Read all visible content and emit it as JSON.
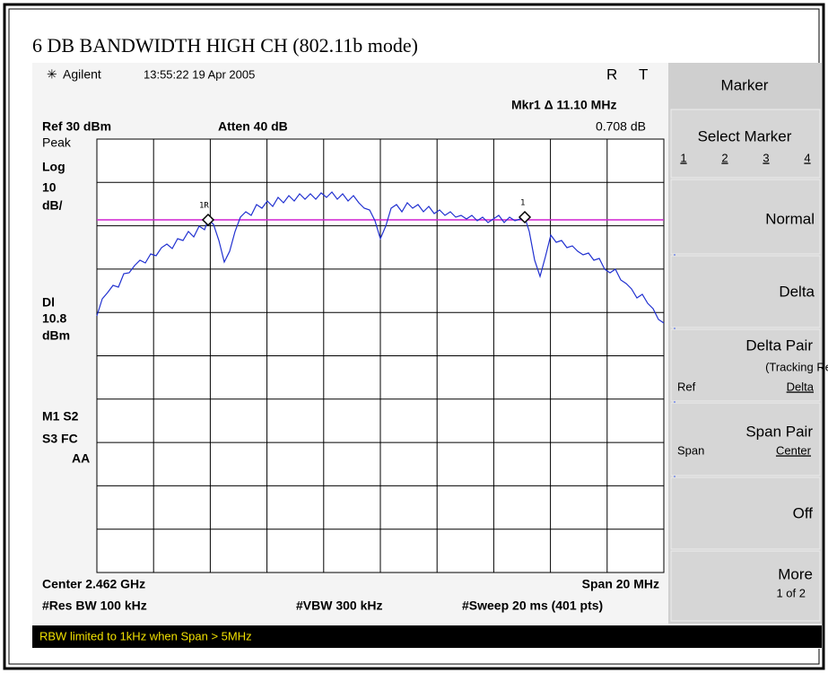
{
  "title": "6 DB BANDWIDTH HIGH CH (802.11b mode)",
  "header": {
    "brand": "Agilent",
    "timestamp": "13:55:22  19 Apr 2005",
    "status": [
      "R",
      "T"
    ]
  },
  "marker_readout": {
    "label": "Mkr1 Δ  11.10 MHz",
    "value": "0.708 dB"
  },
  "settings": {
    "ref": "Ref 30 dBm",
    "atten": "Atten 40 dB"
  },
  "left_labels": [
    "Peak",
    "Log",
    "10",
    "dB/",
    "Dl",
    "10.8",
    "dBm",
    "M1  S2",
    "S3  FC",
    "AA"
  ],
  "markers": [
    "1R",
    "1"
  ],
  "footer": {
    "center": "Center 2.462 GHz",
    "span": "Span 20 MHz",
    "rbw": "#Res BW 100 kHz",
    "vbw": "#VBW 300 kHz",
    "sweep": "#Sweep 20 ms (401 pts)"
  },
  "softkeys": {
    "menu": "Marker",
    "select": {
      "label": "Select Marker",
      "options": [
        "1",
        "2",
        "3",
        "4"
      ]
    },
    "normal": "Normal",
    "delta": "Delta",
    "delta_pair": {
      "label": "Delta Pair",
      "sub": "(Tracking Ref)",
      "left": "Ref",
      "right": "Delta"
    },
    "span_pair": {
      "label": "Span Pair",
      "left": "Span",
      "right": "Center"
    },
    "off": "Off",
    "more": {
      "label": "More",
      "sub": "1 of 2"
    }
  },
  "message": "RBW limited to 1kHz when Span > 5MHz"
}
